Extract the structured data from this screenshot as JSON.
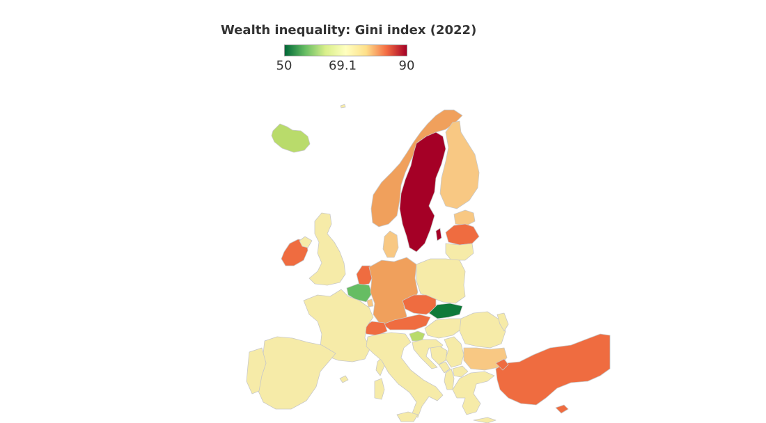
{
  "title": "Wealth inequality: Gini index (2022)",
  "legend": {
    "min_label": "50",
    "mid_label": "69.1",
    "max_label": "90",
    "stops": [
      "#006837",
      "#66bd63",
      "#d9ef8b",
      "#ffffbf",
      "#fee08b",
      "#f46d43",
      "#a50026"
    ]
  },
  "colors": {
    "dark_red": "#a50026",
    "red_orange": "#ef6c40",
    "orange": "#f0a05c",
    "light_orange": "#f8c883",
    "pale_yellow": "#f6eba8",
    "light_green": "#b9db6b",
    "green": "#66bd63",
    "dark_green": "#0f7a3a",
    "border": "#c8c8c8",
    "background": "#ffffff"
  }
}
